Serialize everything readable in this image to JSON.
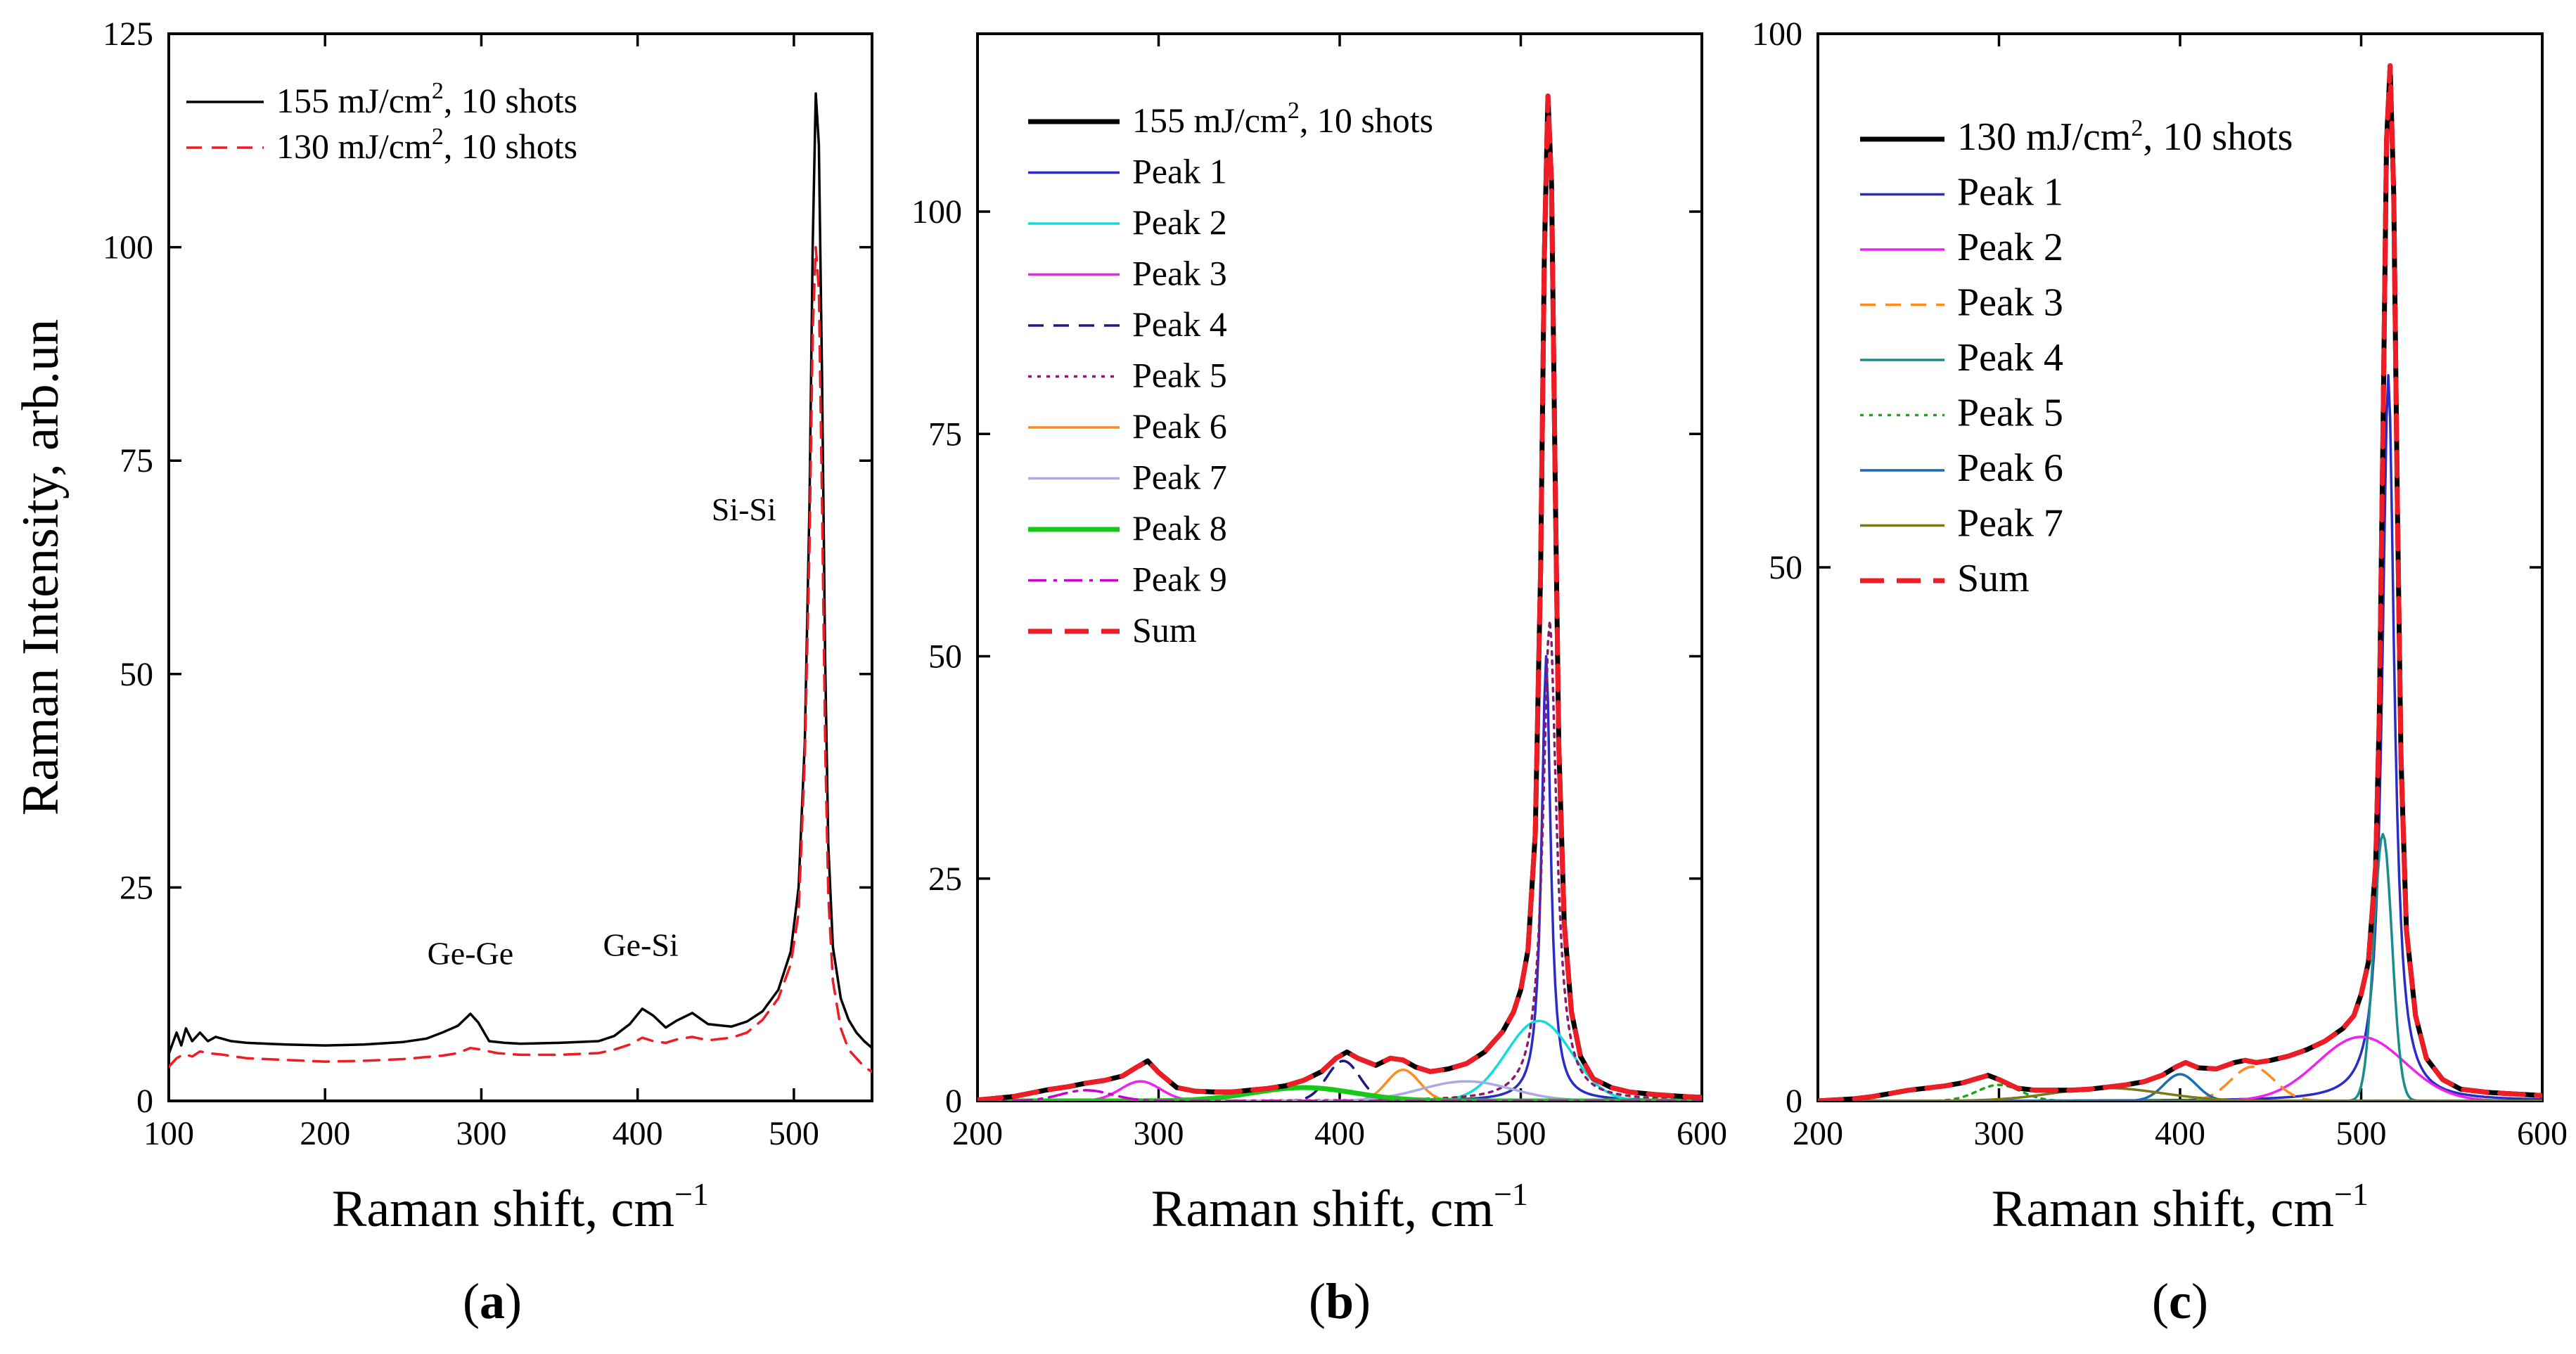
{
  "chart_data": [
    {
      "panel_label": "(a)",
      "panel_letter": "a",
      "type": "line",
      "xlabel": "Raman shift, cm",
      "xlabel_sup": "−1",
      "ylabel": "Raman Intensity, arb.un",
      "xlim": [
        100,
        550
      ],
      "ylim": [
        0,
        125
      ],
      "xticks": [
        "100",
        "200",
        "300",
        "400",
        "500"
      ],
      "yticks": [
        "0",
        "25",
        "50",
        "75",
        "100",
        "125"
      ],
      "legend_position": "top-left",
      "annotations": [
        {
          "text": "Ge-Ge",
          "x": 293,
          "y": 16
        },
        {
          "text": "Ge-Si",
          "x": 402,
          "y": 17
        },
        {
          "text": "Si-Si",
          "x": 468,
          "y": 68
        }
      ],
      "series": [
        {
          "name": "155 mJ/cm2, 10 shots",
          "label_main": "155 mJ/cm",
          "label_sup": "2",
          "label_tail": ", 10 shots",
          "color": "#000000",
          "dash": "solid",
          "x": [
            100,
            105,
            108,
            111,
            115,
            120,
            125,
            130,
            140,
            150,
            175,
            200,
            225,
            250,
            265,
            275,
            285,
            293,
            298,
            305,
            315,
            325,
            350,
            375,
            385,
            395,
            403,
            410,
            418,
            425,
            435,
            445,
            460,
            470,
            480,
            490,
            498,
            503,
            507,
            510,
            512,
            514,
            516,
            518,
            520,
            522,
            525,
            530,
            535,
            540,
            545,
            550
          ],
          "y": [
            5.5,
            8,
            6.5,
            8.5,
            7,
            8,
            7,
            7.5,
            7,
            6.8,
            6.6,
            6.5,
            6.6,
            6.9,
            7.3,
            8,
            8.8,
            10.2,
            9.2,
            7,
            6.8,
            6.7,
            6.8,
            7,
            7.6,
            9,
            10.8,
            10,
            8.6,
            9.4,
            10.3,
            9,
            8.7,
            9.3,
            10.5,
            13,
            17.5,
            25,
            42,
            70,
            100,
            118,
            112,
            85,
            52,
            30,
            18,
            12,
            9.5,
            8,
            7,
            6.2
          ]
        },
        {
          "name": "130 mJ/cm2, 10 shots",
          "label_main": "130 mJ/cm",
          "label_sup": "2",
          "label_tail": ", 10 shots",
          "color": "#ee1c24",
          "dash": "dashed",
          "x": [
            100,
            105,
            110,
            115,
            120,
            125,
            135,
            150,
            175,
            200,
            225,
            250,
            275,
            285,
            293,
            300,
            310,
            325,
            350,
            375,
            385,
            395,
            403,
            410,
            418,
            425,
            435,
            445,
            460,
            470,
            480,
            490,
            498,
            503,
            507,
            510,
            512,
            514,
            516,
            518,
            520,
            522,
            525,
            530,
            535,
            540,
            545,
            550
          ],
          "y": [
            4,
            5,
            5.5,
            5.2,
            5.8,
            5.6,
            5.4,
            5,
            4.8,
            4.6,
            4.7,
            4.9,
            5.3,
            5.6,
            6.2,
            6,
            5.6,
            5.4,
            5.4,
            5.6,
            6,
            6.6,
            7.4,
            7,
            6.8,
            7.2,
            7.5,
            7.1,
            7.4,
            8,
            9.5,
            12,
            16,
            22,
            40,
            65,
            90,
            100,
            95,
            70,
            42,
            24,
            14,
            8.5,
            6,
            5,
            4,
            3.4
          ]
        }
      ]
    },
    {
      "panel_label": "(b)",
      "panel_letter": "b",
      "type": "line",
      "xlabel": "Raman shift, cm",
      "xlabel_sup": "−1",
      "xlim": [
        200,
        600
      ],
      "ylim": [
        0,
        120
      ],
      "xticks": [
        "200",
        "300",
        "400",
        "500",
        "600"
      ],
      "yticks": [
        "0",
        "25",
        "50",
        "75",
        "100"
      ],
      "legend_position": "top-left",
      "series": [
        {
          "name": "155 mJ/cm2, 10 shots",
          "label_main": "155 mJ/cm",
          "label_sup": "2",
          "label_tail": ", 10 shots",
          "color": "#000000",
          "dash": "solid-thick",
          "kind": "data",
          "x": [
            200,
            210,
            220,
            230,
            240,
            250,
            260,
            270,
            280,
            288,
            294,
            300,
            310,
            320,
            330,
            340,
            350,
            360,
            370,
            380,
            390,
            398,
            404,
            410,
            420,
            428,
            435,
            442,
            450,
            460,
            470,
            480,
            490,
            496,
            500,
            504,
            508,
            511,
            513,
            515,
            517,
            519,
            521,
            524,
            528,
            533,
            540,
            550,
            560,
            575,
            590,
            600
          ],
          "y": [
            0.1,
            0.3,
            0.5,
            0.9,
            1.3,
            1.6,
            2,
            2.3,
            2.8,
            3.8,
            4.5,
            3.2,
            1.5,
            1.1,
            1,
            1,
            1.2,
            1.4,
            1.7,
            2.3,
            3.3,
            4.8,
            5.5,
            4.8,
            4,
            4.8,
            4.6,
            3.8,
            3.3,
            3.6,
            4.2,
            5.5,
            7.8,
            10,
            12.5,
            17,
            30,
            60,
            95,
            113,
            103,
            70,
            40,
            20,
            10,
            5,
            2.5,
            1.5,
            1,
            0.7,
            0.5,
            0.4
          ]
        },
        {
          "name": "Peak 1",
          "label_main": "Peak 1",
          "color": "#2b2bc8",
          "dash": "solid",
          "kind": "lorentz",
          "center": 514,
          "amp": 50,
          "width": 3
        },
        {
          "name": "Peak 2",
          "label_main": "Peak 2",
          "color": "#14dcdc",
          "dash": "solid",
          "kind": "gauss",
          "center": 510,
          "amp": 9,
          "width": 18
        },
        {
          "name": "Peak 3",
          "label_main": "Peak 3",
          "color": "#ee22ee",
          "dash": "solid",
          "kind": "gauss",
          "center": 290,
          "amp": 2.2,
          "width": 11
        },
        {
          "name": "Peak 4",
          "label_main": "Peak 4",
          "color": "#1a1a80",
          "dash": "dashed",
          "kind": "gauss",
          "center": 402,
          "amp": 4.5,
          "width": 9
        },
        {
          "name": "Peak 5",
          "label_main": "Peak 5",
          "color": "#8b1a6b",
          "dash": "dotted",
          "kind": "lorentz",
          "center": 516,
          "amp": 54,
          "width": 4.5
        },
        {
          "name": "Peak 6",
          "label_main": "Peak 6",
          "color": "#ff8c1a",
          "dash": "solid",
          "kind": "gauss",
          "center": 435,
          "amp": 3.5,
          "width": 9
        },
        {
          "name": "Peak 7",
          "label_main": "Peak 7",
          "color": "#a9a9e6",
          "dash": "solid",
          "kind": "gauss",
          "center": 470,
          "amp": 2.2,
          "width": 25
        },
        {
          "name": "Peak 8",
          "label_main": "Peak 8",
          "color": "#18c818",
          "dash": "solid-thick",
          "kind": "gauss",
          "center": 380,
          "amp": 1.5,
          "width": 28
        },
        {
          "name": "Peak 9",
          "label_main": "Peak 9",
          "color": "#cc00cc",
          "dash": "dashdot",
          "kind": "gauss",
          "center": 260,
          "amp": 1.2,
          "width": 14
        },
        {
          "name": "Sum",
          "label_main": "Sum",
          "color": "#ee1c24",
          "dash": "dashed-thick",
          "kind": "sum-of-data"
        }
      ]
    },
    {
      "panel_label": "(c)",
      "panel_letter": "c",
      "type": "line",
      "xlabel": "Raman shift, cm",
      "xlabel_sup": "−1",
      "xlim": [
        200,
        600
      ],
      "ylim": [
        0,
        100
      ],
      "xticks": [
        "200",
        "300",
        "400",
        "500",
        "600"
      ],
      "yticks": [
        "0",
        "50",
        "100"
      ],
      "legend_position": "top-left",
      "series": [
        {
          "name": "130 mJ/cm2, 10 shots",
          "label_main": "130 mJ/cm",
          "label_sup": "2",
          "label_tail": ", 10 shots",
          "color": "#000000",
          "dash": "solid-thick",
          "kind": "data",
          "x": [
            200,
            210,
            220,
            230,
            240,
            250,
            260,
            270,
            280,
            288,
            294,
            300,
            310,
            320,
            330,
            340,
            350,
            360,
            370,
            380,
            390,
            398,
            403,
            410,
            420,
            430,
            436,
            442,
            450,
            460,
            470,
            480,
            490,
            496,
            500,
            504,
            508,
            510,
            512,
            514,
            516,
            518,
            520,
            522,
            525,
            530,
            536,
            545,
            555,
            570,
            590,
            600
          ],
          "y": [
            0,
            0.1,
            0.2,
            0.4,
            0.7,
            1,
            1.2,
            1.4,
            1.7,
            2.1,
            2.4,
            2,
            1.2,
            1,
            1,
            1,
            1.1,
            1.3,
            1.5,
            1.8,
            2.4,
            3.2,
            3.6,
            3.1,
            3,
            3.6,
            3.8,
            3.6,
            3.8,
            4.2,
            4.8,
            5.6,
            6.8,
            8,
            10,
            13,
            22,
            36,
            62,
            90,
            97,
            85,
            56,
            32,
            16,
            8,
            4,
            2,
            1.1,
            0.8,
            0.6,
            0.5
          ]
        },
        {
          "name": "Peak 1",
          "label_main": "Peak 1",
          "color": "#2b2bc8",
          "dash": "solid",
          "kind": "lorentz",
          "center": 515,
          "amp": 68,
          "width": 4
        },
        {
          "name": "Peak 2",
          "label_main": "Peak 2",
          "color": "#ee22ee",
          "dash": "solid",
          "kind": "gauss",
          "center": 500,
          "amp": 6,
          "width": 24
        },
        {
          "name": "Peak 3",
          "label_main": "Peak 3",
          "color": "#ff8c1a",
          "dash": "dashed",
          "kind": "gauss",
          "center": 440,
          "amp": 3.2,
          "width": 12
        },
        {
          "name": "Peak 4",
          "label_main": "Peak 4",
          "color": "#1a8c8c",
          "dash": "solid",
          "kind": "gauss",
          "center": 512,
          "amp": 25,
          "width": 5
        },
        {
          "name": "Peak 5",
          "label_main": "Peak 5",
          "color": "#18a818",
          "dash": "dotted",
          "kind": "gauss",
          "center": 300,
          "amp": 1.5,
          "width": 12
        },
        {
          "name": "Peak 6",
          "label_main": "Peak 6",
          "color": "#1a6cb4",
          "dash": "solid",
          "kind": "gauss",
          "center": 400,
          "amp": 2.5,
          "width": 9
        },
        {
          "name": "Peak 7",
          "label_main": "Peak 7",
          "color": "#7a7a1a",
          "dash": "solid",
          "kind": "gauss",
          "center": 360,
          "amp": 1.2,
          "width": 30
        },
        {
          "name": "Sum",
          "label_main": "Sum",
          "color": "#ee1c24",
          "dash": "dashed-thick",
          "kind": "sum-of-data"
        }
      ]
    }
  ]
}
